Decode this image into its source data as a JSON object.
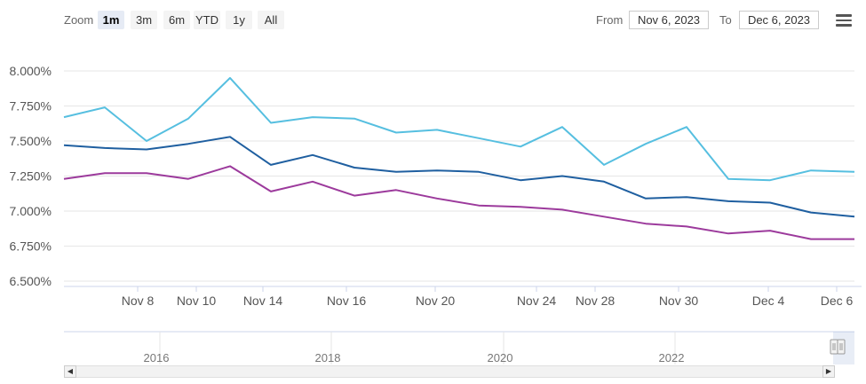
{
  "toolbar": {
    "zoom_label": "Zoom",
    "zoom_buttons": [
      "1m",
      "3m",
      "6m",
      "YTD",
      "1y",
      "All"
    ],
    "active_zoom": "1m",
    "from_label": "From",
    "from_value": "Nov 6, 2023",
    "to_label": "To",
    "to_value": "Dec 6, 2023",
    "menu_icon": "hamburger-menu-icon"
  },
  "navigator": {
    "year_labels": [
      "2016",
      "2018",
      "2020",
      "2022"
    ],
    "scroll_left_icon": "arrow-left-icon",
    "scroll_right_icon": "arrow-right-icon",
    "handle_icon": "grip-handle-icon"
  },
  "chart_data": {
    "type": "line",
    "x": [
      "Nov 6",
      "Nov 7",
      "Nov 8",
      "Nov 9",
      "Nov 10",
      "Nov 13",
      "Nov 14",
      "Nov 15",
      "Nov 16",
      "Nov 17",
      "Nov 20",
      "Nov 21",
      "Nov 22",
      "Nov 24",
      "Nov 27",
      "Nov 28",
      "Nov 29",
      "Nov 30",
      "Dec 1",
      "Dec 4",
      "Dec 5",
      "Dec 6"
    ],
    "x_tick_labels": [
      "Nov 8",
      "Nov 10",
      "Nov 14",
      "Nov 16",
      "Nov 20",
      "Nov 24",
      "Nov 28",
      "Nov 30",
      "Dec 4",
      "Dec 6"
    ],
    "y_tick_labels": [
      "6.500%",
      "6.750%",
      "7.000%",
      "7.250%",
      "7.500%",
      "7.750%",
      "8.000%"
    ],
    "ylim": [
      6.5,
      8.0
    ],
    "grid": true,
    "series": [
      {
        "color": "#56bfe0",
        "values": [
          7.67,
          7.74,
          7.5,
          7.66,
          7.95,
          7.63,
          7.67,
          7.66,
          7.56,
          7.58,
          7.52,
          7.46,
          7.6,
          7.33,
          7.48,
          7.6,
          7.23,
          7.22,
          7.29,
          7.28,
          7.28,
          7.28
        ]
      },
      {
        "color": "#1f5fa0",
        "values": [
          7.47,
          7.45,
          7.44,
          7.48,
          7.53,
          7.33,
          7.4,
          7.31,
          7.28,
          7.29,
          7.28,
          7.22,
          7.25,
          7.21,
          7.09,
          7.1,
          7.07,
          7.06,
          6.99,
          6.96,
          6.96,
          6.96
        ]
      },
      {
        "color": "#9c3a9c",
        "values": [
          7.23,
          7.27,
          7.27,
          7.23,
          7.32,
          7.14,
          7.21,
          7.11,
          7.15,
          7.09,
          7.04,
          7.03,
          7.01,
          6.96,
          6.91,
          6.89,
          6.84,
          6.86,
          6.8,
          6.8,
          6.8,
          6.8
        ]
      }
    ]
  }
}
